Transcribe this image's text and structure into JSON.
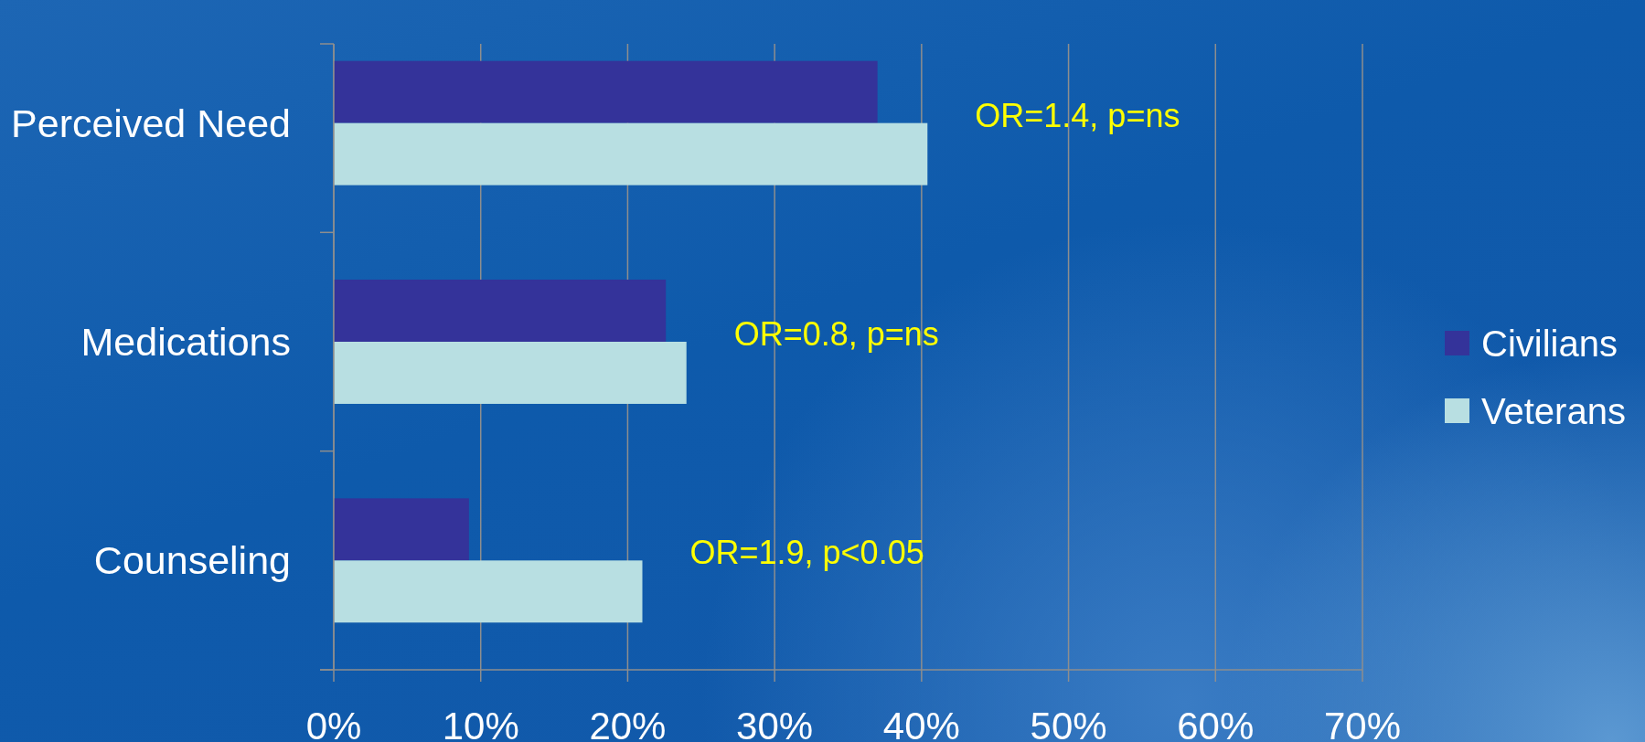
{
  "chart_data": {
    "type": "bar",
    "orientation": "horizontal",
    "categories": [
      "Perceived Need",
      "Medications",
      "Counseling"
    ],
    "series": [
      {
        "name": "Civilians",
        "color": "#34339a",
        "values": [
          37,
          22.6,
          9.2
        ]
      },
      {
        "name": "Veterans",
        "color": "#b8dfe2",
        "values": [
          40.4,
          24,
          21
        ]
      }
    ],
    "xlim": [
      0,
      70
    ],
    "xticks": [
      {
        "value": 0,
        "label": "0%"
      },
      {
        "value": 10,
        "label": "10%"
      },
      {
        "value": 20,
        "label": "20%"
      },
      {
        "value": 30,
        "label": "30%"
      },
      {
        "value": 40,
        "label": "40%"
      },
      {
        "value": 50,
        "label": "50%"
      },
      {
        "value": 60,
        "label": "60%"
      },
      {
        "value": 70,
        "label": "70%"
      }
    ],
    "grid": "x",
    "legend": "right",
    "annotations": [
      "OR=1.4, p=ns",
      "OR=0.8, p=ns",
      "OR=1.9, p<0.05"
    ]
  }
}
